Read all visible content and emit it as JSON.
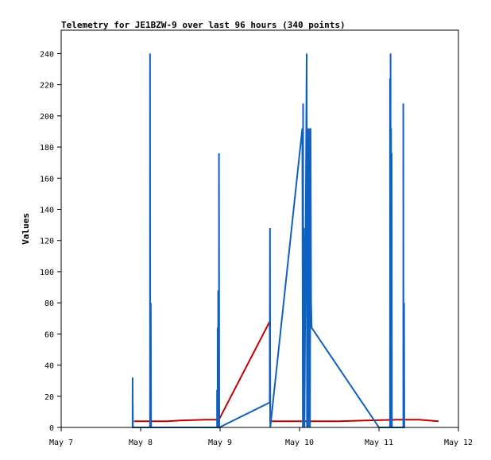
{
  "chart_data": {
    "type": "line",
    "title": "Telemetry for JE1BZW-9 over last 96 hours (340 points)",
    "xlabel": "",
    "ylabel": "Values",
    "x_range": [
      "May 7",
      "May 12"
    ],
    "ylim": [
      0,
      255
    ],
    "x_ticks": [
      "May 7",
      "May 8",
      "May 9",
      "May 10",
      "May 11",
      "May 12"
    ],
    "y_ticks": [
      0,
      20,
      40,
      60,
      80,
      100,
      120,
      140,
      160,
      180,
      200,
      220,
      240
    ],
    "grid": false,
    "legend": "none",
    "series": [
      {
        "color": "#c00000",
        "points": [
          [
            "May 7 22:00",
            4
          ],
          [
            "May 8 08:00",
            4
          ],
          [
            "May 8 12:00",
            4.5
          ],
          [
            "May 8 20:00",
            5
          ],
          [
            "May 8 23:40",
            5
          ],
          [
            "May 9 15:00",
            68
          ],
          [
            "May 9 15:10",
            4
          ],
          [
            "May 10 00:00",
            4
          ],
          [
            "May 10 12:00",
            4
          ],
          [
            "May 10 20:00",
            4.5
          ],
          [
            "May 11 06:00",
            5
          ],
          [
            "May 11 12:00",
            5
          ],
          [
            "May 11 18:00",
            4
          ]
        ]
      },
      {
        "color": "#1060c0",
        "points": [
          [
            "May 7 21:35",
            0
          ],
          [
            "May 7 21:35",
            32
          ],
          [
            "May 7 21:38",
            0
          ],
          [
            "May 7 21:38",
            16
          ],
          [
            "May 7 21:40",
            0
          ],
          [
            "May 8 02:50",
            0
          ],
          [
            "May 8 02:50",
            240
          ],
          [
            "May 8 02:55",
            0
          ],
          [
            "May 8 03:05",
            0
          ],
          [
            "May 8 03:05",
            80
          ],
          [
            "May 8 03:10",
            0
          ],
          [
            "May 8 23:05",
            0
          ],
          [
            "May 8 23:05",
            24
          ],
          [
            "May 8 23:10",
            0
          ],
          [
            "May 8 23:15",
            0
          ],
          [
            "May 8 23:15",
            64
          ],
          [
            "May 8 23:20",
            0
          ],
          [
            "May 8 23:25",
            0
          ],
          [
            "May 8 23:25",
            88
          ],
          [
            "May 8 23:30",
            0
          ],
          [
            "May 8 23:40",
            0
          ],
          [
            "May 8 23:40",
            176
          ],
          [
            "May 8 23:45",
            0
          ],
          [
            "May 9 15:00",
            16
          ],
          [
            "May 9 15:05",
            128
          ],
          [
            "May 9 15:10",
            0
          ],
          [
            "May 10 00:50",
            192
          ],
          [
            "May 10 01:00",
            0
          ],
          [
            "May 10 01:05",
            208
          ],
          [
            "May 10 01:10",
            0
          ],
          [
            "May 10 01:20",
            128
          ],
          [
            "May 10 01:30",
            0
          ],
          [
            "May 10 02:10",
            240
          ],
          [
            "May 10 02:15",
            0
          ],
          [
            "May 10 02:30",
            192
          ],
          [
            "May 10 02:40",
            0
          ],
          [
            "May 10 03:00",
            192
          ],
          [
            "May 10 03:10",
            0
          ],
          [
            "May 10 03:20",
            192
          ],
          [
            "May 10 03:30",
            80
          ],
          [
            "May 10 03:40",
            64
          ],
          [
            "May 11 00:00",
            0
          ],
          [
            "May 11 03:20",
            0
          ],
          [
            "May 11 03:20",
            224
          ],
          [
            "May 11 03:25",
            0
          ],
          [
            "May 11 03:30",
            0
          ],
          [
            "May 11 03:30",
            240
          ],
          [
            "May 11 03:35",
            0
          ],
          [
            "May 11 03:40",
            0
          ],
          [
            "May 11 03:40",
            192
          ],
          [
            "May 11 03:45",
            0
          ],
          [
            "May 11 03:50",
            0
          ],
          [
            "May 11 03:50",
            176
          ],
          [
            "May 11 03:55",
            0
          ],
          [
            "May 11 07:20",
            0
          ],
          [
            "May 11 07:20",
            208
          ],
          [
            "May 11 07:25",
            0
          ],
          [
            "May 11 07:35",
            0
          ],
          [
            "May 11 07:35",
            80
          ],
          [
            "May 11 07:40",
            0
          ]
        ]
      }
    ]
  }
}
